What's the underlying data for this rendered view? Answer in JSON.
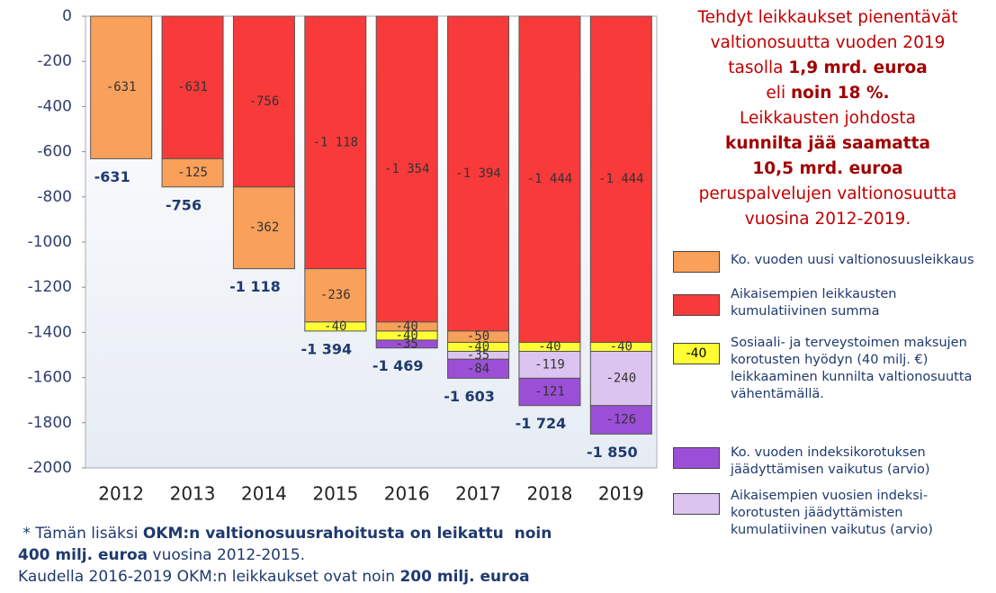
{
  "chart_data": {
    "type": "stacked_bar",
    "categories": [
      "2012",
      "2013",
      "2014",
      "2015",
      "2016",
      "2017",
      "2018",
      "2019"
    ],
    "ylim": [
      -2000,
      0
    ],
    "yticks": [
      0,
      -200,
      -400,
      -600,
      -800,
      -1000,
      -1200,
      -1400,
      -1600,
      -1800,
      -2000
    ],
    "series": [
      {
        "name": "Ko. vuoden uusi valtionosuusleikkaus",
        "color": "#f9a05a",
        "values": [
          -631,
          -125,
          -362,
          -236,
          -40,
          -50,
          null,
          null
        ]
      },
      {
        "name": "Aikaisempien leikkausten kumulatiivinen summa",
        "color": "#f93a3a",
        "values": [
          null,
          -631,
          -756,
          -1118,
          -1354,
          -1394,
          -1444,
          -1444
        ],
        "value_labels": [
          null,
          "-631",
          "-756",
          "-1 118",
          "-1 354",
          "-1 394",
          "-1 444",
          "-1 444"
        ]
      },
      {
        "name": "Sosiaali- ja terveystoimen maksujen korotusten hyödyn (40 milj. €) leikkaaminen kunnilta valtionosuutta vähentämällä.",
        "color": "#ffff33",
        "swatch_label": "-40",
        "values": [
          null,
          null,
          null,
          -40,
          -40,
          -40,
          -40,
          -40
        ]
      },
      {
        "name": "Ko. vuoden indeksikorotuksen jäädyttämisen vaikutus (arvio)",
        "color": "#9b4fd6",
        "values": [
          null,
          null,
          null,
          null,
          -35,
          -84,
          -121,
          -126
        ]
      },
      {
        "name": "Aikaisempien vuosien indeksi-korotusten jäädyttämisten kumulatiivinen vaikutus (arvio)",
        "color": "#dcc4f0",
        "values": [
          null,
          null,
          null,
          null,
          null,
          -35,
          -119,
          -240
        ]
      }
    ],
    "totals": [
      -631,
      -756,
      -1118,
      -1394,
      -1469,
      -1603,
      -1724,
      -1850
    ],
    "total_labels": [
      "-631",
      "-756",
      "-1 118",
      "-1 394",
      "-1 469",
      "-1 603",
      "-1 724",
      "-1 850"
    ],
    "annotation_lines": [
      [
        {
          "text": "Tehdyt leikkaukset pienentävät",
          "bold": false
        }
      ],
      [
        {
          "text": "valtionosuutta vuoden 2019",
          "bold": false
        }
      ],
      [
        {
          "text": "tasolla ",
          "bold": false
        },
        {
          "text": "1,9 mrd. euroa",
          "bold": true
        }
      ],
      [
        {
          "text": "eli ",
          "bold": false
        },
        {
          "text": "noin 18 %.",
          "bold": true
        }
      ],
      [
        {
          "text": "Leikkausten johdosta",
          "bold": false
        }
      ],
      [
        {
          "text": "kunnilta jää saamatta",
          "bold": true
        }
      ],
      [
        {
          "text": "10,5 mrd. euroa",
          "bold": true
        }
      ],
      [
        {
          "text": "peruspalvelujen valtionosuutta",
          "bold": false
        }
      ],
      [
        {
          "text": "vuosina 2012-2019.",
          "bold": false
        }
      ]
    ],
    "footnote_lines": [
      [
        {
          "text": " * Tämän lisäksi ",
          "bold": false
        },
        {
          "text": "OKM:n valtionosuusrahoitusta on leikattu  noin",
          "bold": true
        }
      ],
      [
        {
          "text": "400 milj. euroa",
          "bold": true
        },
        {
          "text": " vuosina 2012-2015.",
          "bold": false
        }
      ],
      [
        {
          "text": "Kaudella 2016-2019 OKM:n leikkaukset ovat noin ",
          "bold": false
        },
        {
          "text": "200 milj. euroa",
          "bold": true
        }
      ]
    ]
  }
}
